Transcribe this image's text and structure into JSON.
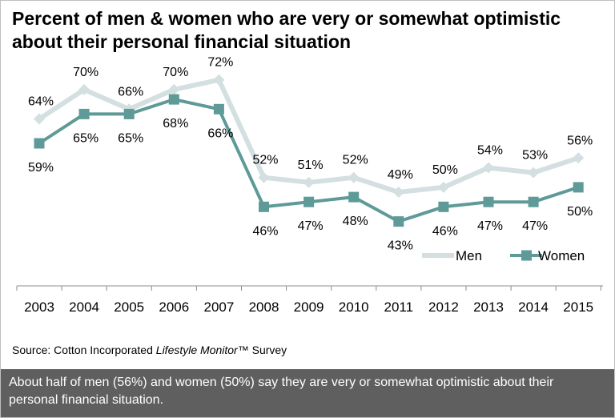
{
  "title": "Percent of men & women who are very or somewhat optimistic about their personal financial situation",
  "source": {
    "prefix": "Source: Cotton Incorporated ",
    "italic": "Lifestyle Monitor",
    "suffix": "™ Survey"
  },
  "footer_text": "About half of men (56%) and women (50%) say they are very or somewhat optimistic about their personal financial situation.",
  "colors": {
    "men": "#d3dfe0",
    "women": "#5e9a97",
    "axis": "#8c8c8c",
    "footer_bg": "#5f5f5f"
  },
  "chart_data": {
    "type": "line",
    "title": "Percent of men & women who are very or somewhat optimistic about their personal financial situation",
    "categories": [
      "2003",
      "2004",
      "2005",
      "2006",
      "2007",
      "2008",
      "2009",
      "2010",
      "2011",
      "2012",
      "2013",
      "2014",
      "2015"
    ],
    "series": [
      {
        "name": "Men",
        "values": [
          64,
          70,
          66,
          70,
          72,
          52,
          51,
          52,
          49,
          50,
          54,
          53,
          56
        ],
        "labels": [
          "64%",
          "70%",
          "66%",
          "70%",
          "72%",
          "52%",
          "51%",
          "52%",
          "49%",
          "50%",
          "54%",
          "53%",
          "56%"
        ]
      },
      {
        "name": "Women",
        "values": [
          59,
          65,
          65,
          68,
          66,
          46,
          47,
          48,
          43,
          46,
          47,
          47,
          50
        ],
        "labels": [
          "59%",
          "65%",
          "65%",
          "68%",
          "66%",
          "46%",
          "47%",
          "48%",
          "43%",
          "46%",
          "47%",
          "47%",
          "50%"
        ]
      }
    ],
    "legend": "bottom-right",
    "grid": false
  }
}
